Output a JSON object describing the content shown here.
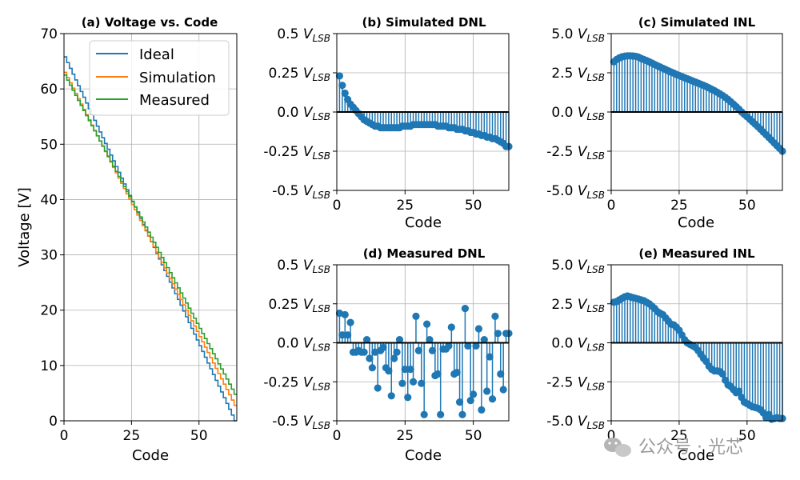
{
  "chart_data": [
    {
      "id": "a",
      "type": "line",
      "title": "(a) Voltage vs. Code",
      "xlabel": "Code",
      "ylabel": "Voltage [V]",
      "xlim": [
        0,
        64
      ],
      "ylim": [
        0,
        70
      ],
      "xticks": [
        0,
        25,
        50
      ],
      "yticks": [
        0,
        10,
        20,
        30,
        40,
        50,
        60,
        70
      ],
      "grid": true,
      "legend_position": "top-right",
      "step": true,
      "series": [
        {
          "name": "Ideal",
          "color": "#1f77b4",
          "start": 65.8,
          "end": 0.0
        },
        {
          "name": "Simulation",
          "color": "#ff7f0e",
          "start": 63.0,
          "end": 2.8
        },
        {
          "name": "Measured",
          "color": "#2ca02c",
          "start": 62.5,
          "end": 4.8
        }
      ]
    },
    {
      "id": "b",
      "type": "stem",
      "title": "(b) Simulated DNL",
      "xlabel": "Code",
      "ylim": [
        -0.5,
        0.5
      ],
      "xlim": [
        0,
        63
      ],
      "xticks": [
        0,
        25,
        50
      ],
      "yticks": [
        0.5,
        0.25,
        0.0,
        -0.25,
        -0.5
      ],
      "ytick_labels": [
        "0.5",
        "0.25",
        "0.0",
        "-0.25",
        "-0.5"
      ],
      "ytick_unit": "V",
      "ytick_unit_sub": "LSB",
      "grid": true,
      "color": "#1f77b4",
      "x": [
        1,
        2,
        3,
        4,
        5,
        6,
        7,
        8,
        9,
        10,
        11,
        12,
        13,
        14,
        15,
        16,
        17,
        18,
        19,
        20,
        21,
        22,
        23,
        24,
        25,
        26,
        27,
        28,
        29,
        30,
        31,
        32,
        33,
        34,
        35,
        36,
        37,
        38,
        39,
        40,
        41,
        42,
        43,
        44,
        45,
        46,
        47,
        48,
        49,
        50,
        51,
        52,
        53,
        54,
        55,
        56,
        57,
        58,
        59,
        60,
        61,
        62,
        63
      ],
      "y": [
        0.23,
        0.17,
        0.12,
        0.08,
        0.05,
        0.03,
        0.01,
        -0.01,
        -0.03,
        -0.05,
        -0.06,
        -0.07,
        -0.08,
        -0.09,
        -0.09,
        -0.1,
        -0.1,
        -0.1,
        -0.1,
        -0.1,
        -0.1,
        -0.1,
        -0.1,
        -0.09,
        -0.09,
        -0.09,
        -0.09,
        -0.08,
        -0.08,
        -0.08,
        -0.08,
        -0.08,
        -0.08,
        -0.08,
        -0.08,
        -0.08,
        -0.09,
        -0.09,
        -0.09,
        -0.09,
        -0.1,
        -0.1,
        -0.1,
        -0.11,
        -0.11,
        -0.11,
        -0.12,
        -0.12,
        -0.13,
        -0.13,
        -0.14,
        -0.14,
        -0.15,
        -0.15,
        -0.16,
        -0.16,
        -0.17,
        -0.17,
        -0.18,
        -0.19,
        -0.2,
        -0.22,
        -0.22
      ]
    },
    {
      "id": "c",
      "type": "stem",
      "title": "(c) Simulated INL",
      "xlabel": "Code",
      "ylim": [
        -5,
        5
      ],
      "xlim": [
        0,
        63
      ],
      "xticks": [
        0,
        25,
        50
      ],
      "yticks": [
        5,
        2.5,
        0,
        -2.5,
        -5
      ],
      "ytick_labels": [
        "5.0",
        "2.5",
        "0.0",
        "-2.5",
        "-5.0"
      ],
      "ytick_unit": "V",
      "ytick_unit_sub": "LSB",
      "grid": true,
      "color": "#1f77b4",
      "x": [
        1,
        2,
        3,
        4,
        5,
        6,
        7,
        8,
        9,
        10,
        11,
        12,
        13,
        14,
        15,
        16,
        17,
        18,
        19,
        20,
        21,
        22,
        23,
        24,
        25,
        26,
        27,
        28,
        29,
        30,
        31,
        32,
        33,
        34,
        35,
        36,
        37,
        38,
        39,
        40,
        41,
        42,
        43,
        44,
        45,
        46,
        47,
        48,
        49,
        50,
        51,
        52,
        53,
        54,
        55,
        56,
        57,
        58,
        59,
        60,
        61,
        62,
        63
      ],
      "y": [
        3.2,
        3.35,
        3.45,
        3.52,
        3.56,
        3.58,
        3.58,
        3.57,
        3.55,
        3.5,
        3.42,
        3.35,
        3.28,
        3.2,
        3.12,
        3.03,
        2.95,
        2.87,
        2.79,
        2.71,
        2.63,
        2.55,
        2.48,
        2.4,
        2.33,
        2.26,
        2.19,
        2.12,
        2.05,
        1.98,
        1.91,
        1.84,
        1.77,
        1.7,
        1.62,
        1.54,
        1.45,
        1.36,
        1.26,
        1.16,
        1.05,
        0.93,
        0.8,
        0.65,
        0.5,
        0.34,
        0.18,
        0.0,
        -0.15,
        -0.3,
        -0.46,
        -0.62,
        -0.78,
        -0.94,
        -1.1,
        -1.28,
        -1.45,
        -1.62,
        -1.8,
        -1.98,
        -2.15,
        -2.32,
        -2.5
      ]
    },
    {
      "id": "d",
      "type": "stem",
      "title": "(d) Measured DNL",
      "xlabel": "Code",
      "ylim": [
        -0.5,
        0.5
      ],
      "xlim": [
        0,
        63
      ],
      "xticks": [
        0,
        25,
        50
      ],
      "yticks": [
        0.5,
        0.25,
        0.0,
        -0.25,
        -0.5
      ],
      "ytick_labels": [
        "0.5",
        "0.25",
        "0.0",
        "-0.25",
        "-0.5"
      ],
      "ytick_unit": "V",
      "ytick_unit_sub": "LSB",
      "grid": true,
      "color": "#1f77b4",
      "x": [
        1,
        2,
        3,
        4,
        5,
        6,
        7,
        8,
        9,
        10,
        11,
        12,
        13,
        14,
        15,
        16,
        17,
        18,
        19,
        20,
        21,
        22,
        23,
        24,
        25,
        26,
        27,
        28,
        29,
        30,
        31,
        32,
        33,
        34,
        35,
        36,
        37,
        38,
        39,
        40,
        41,
        42,
        43,
        44,
        45,
        46,
        47,
        48,
        49,
        50,
        51,
        52,
        53,
        54,
        55,
        56,
        57,
        58,
        59,
        60,
        61,
        62,
        63
      ],
      "y": [
        0.19,
        0.05,
        0.18,
        0.05,
        0.13,
        -0.06,
        -0.06,
        -0.05,
        -0.06,
        -0.06,
        0.02,
        -0.1,
        -0.16,
        -0.06,
        -0.29,
        -0.05,
        -0.03,
        -0.16,
        -0.18,
        -0.34,
        -0.1,
        -0.06,
        0.02,
        -0.26,
        -0.17,
        -0.35,
        -0.17,
        -0.25,
        0.17,
        -0.05,
        -0.26,
        -0.46,
        0.12,
        0.02,
        -0.05,
        -0.21,
        -0.2,
        -0.46,
        -0.04,
        -0.04,
        -0.02,
        0.1,
        -0.2,
        -0.19,
        -0.38,
        -0.46,
        0.22,
        -0.02,
        -0.37,
        -0.33,
        -0.02,
        0.09,
        -0.43,
        0.02,
        -0.31,
        -0.09,
        -0.36,
        0.17,
        0.06,
        -0.2,
        -0.3,
        0.06,
        0.06
      ]
    },
    {
      "id": "e",
      "type": "stem",
      "title": "(e) Measured INL",
      "xlabel": "Code",
      "ylim": [
        -5,
        5
      ],
      "xlim": [
        0,
        63
      ],
      "xticks": [
        0,
        25,
        50
      ],
      "yticks": [
        5,
        2.5,
        0,
        -2.5,
        -5
      ],
      "ytick_labels": [
        "5.0",
        "2.5",
        "0.0",
        "-2.5",
        "-5.0"
      ],
      "ytick_unit": "V",
      "ytick_unit_sub": "LSB",
      "grid": true,
      "color": "#1f77b4",
      "x": [
        1,
        2,
        3,
        4,
        5,
        6,
        7,
        8,
        9,
        10,
        11,
        12,
        13,
        14,
        15,
        16,
        17,
        18,
        19,
        20,
        21,
        22,
        23,
        24,
        25,
        26,
        27,
        28,
        29,
        30,
        31,
        32,
        33,
        34,
        35,
        36,
        37,
        38,
        39,
        40,
        41,
        42,
        43,
        44,
        45,
        46,
        47,
        48,
        49,
        50,
        51,
        52,
        53,
        54,
        55,
        56,
        57,
        58,
        59,
        60,
        61,
        62,
        63
      ],
      "y": [
        2.6,
        2.65,
        2.75,
        2.85,
        2.95,
        3.0,
        2.95,
        2.9,
        2.85,
        2.8,
        2.75,
        2.7,
        2.6,
        2.5,
        2.35,
        2.2,
        2.0,
        1.9,
        1.8,
        1.6,
        1.4,
        1.2,
        1.15,
        1.0,
        0.8,
        0.5,
        0.2,
        0.0,
        -0.1,
        -0.2,
        -0.3,
        -0.5,
        -0.75,
        -1.0,
        -1.2,
        -1.5,
        -1.7,
        -1.8,
        -1.8,
        -1.85,
        -2.0,
        -2.4,
        -2.7,
        -2.8,
        -3.0,
        -3.2,
        -3.1,
        -3.5,
        -3.8,
        -3.9,
        -4.0,
        -4.1,
        -4.15,
        -4.2,
        -4.3,
        -4.5,
        -4.8,
        -4.6,
        -4.9,
        -4.85,
        -4.8,
        -4.85,
        -4.85
      ]
    }
  ],
  "watermark": {
    "text": "公众号 · 光芯"
  }
}
